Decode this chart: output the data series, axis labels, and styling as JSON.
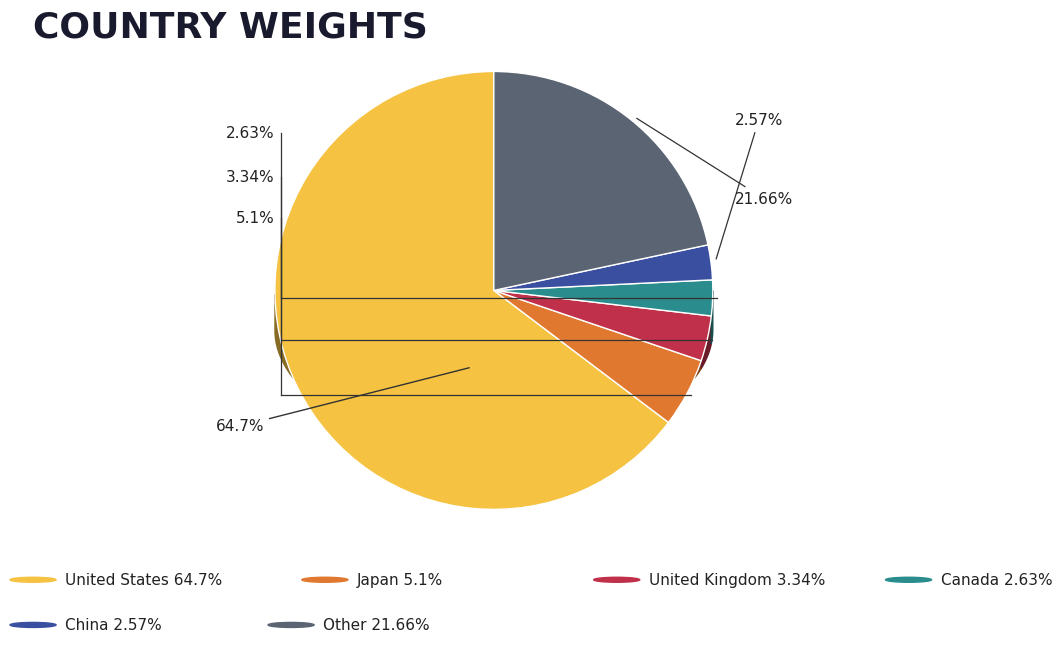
{
  "title": "COUNTRY WEIGHTS",
  "slices": [
    {
      "label": "United States",
      "value": 64.7,
      "color": "#F5C242",
      "pct": "64.7%"
    },
    {
      "label": "Japan",
      "value": 5.1,
      "color": "#E07830",
      "pct": "5.1%"
    },
    {
      "label": "United Kingdom",
      "value": 3.34,
      "color": "#C0304A",
      "pct": "3.34%"
    },
    {
      "label": "Canada",
      "value": 2.63,
      "color": "#2A8C8C",
      "pct": "2.63%"
    },
    {
      "label": "China",
      "value": 2.57,
      "color": "#3A4FA0",
      "pct": "2.57%"
    },
    {
      "label": "Other",
      "value": 21.66,
      "color": "#5A6472",
      "pct": "21.66%"
    }
  ],
  "legend_items": [
    {
      "label": "United States 64.7%",
      "color": "#F5C242"
    },
    {
      "label": "Japan 5.1%",
      "color": "#E07830"
    },
    {
      "label": "United Kingdom 3.34%",
      "color": "#C0304A"
    },
    {
      "label": "Canada 2.63%",
      "color": "#2A8C8C"
    },
    {
      "label": "China 2.57%",
      "color": "#3A4FA0"
    },
    {
      "label": "Other 21.66%",
      "color": "#5A6472"
    }
  ],
  "background_color": "#FFFFFF",
  "title_color": "#1a1a2e",
  "shadow_color": "#A08020",
  "pie_depth_color": "#8B6914",
  "start_angle": 90,
  "annotation_color": "#222222"
}
